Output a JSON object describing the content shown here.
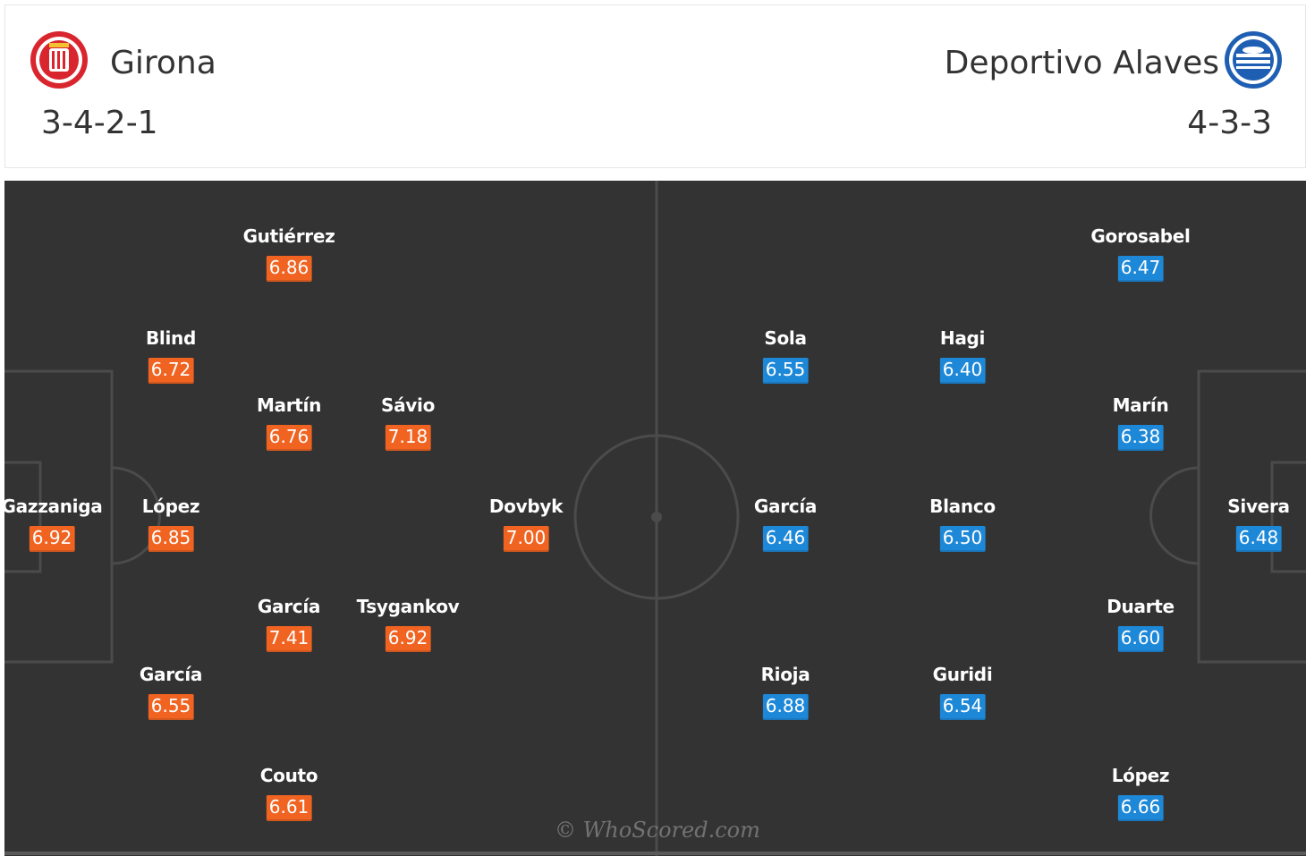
{
  "home": {
    "name": "Girona",
    "formation": "3-4-2-1",
    "color": "#f06321",
    "crest_icon": "girona-crest",
    "players": [
      {
        "name": "Gutiérrez",
        "rating": "6.86"
      },
      {
        "name": "Blind",
        "rating": "6.72"
      },
      {
        "name": "Martín",
        "rating": "6.76"
      },
      {
        "name": "Sávio",
        "rating": "7.18"
      },
      {
        "name": "Gazzaniga",
        "rating": "6.92"
      },
      {
        "name": "López",
        "rating": "6.85"
      },
      {
        "name": "Dovbyk",
        "rating": "7.00"
      },
      {
        "name": "García",
        "rating": "7.41"
      },
      {
        "name": "Tsygankov",
        "rating": "6.92"
      },
      {
        "name": "García",
        "rating": "6.55"
      },
      {
        "name": "Couto",
        "rating": "6.61"
      }
    ]
  },
  "away": {
    "name": "Deportivo Alaves",
    "formation": "4-3-3",
    "color": "#1e88d8",
    "crest_icon": "alaves-crest",
    "players": [
      {
        "name": "Gorosabel",
        "rating": "6.47"
      },
      {
        "name": "Sola",
        "rating": "6.55"
      },
      {
        "name": "Hagi",
        "rating": "6.40"
      },
      {
        "name": "Marín",
        "rating": "6.38"
      },
      {
        "name": "García",
        "rating": "6.46"
      },
      {
        "name": "Blanco",
        "rating": "6.50"
      },
      {
        "name": "Sivera",
        "rating": "6.48"
      },
      {
        "name": "Duarte",
        "rating": "6.60"
      },
      {
        "name": "Rioja",
        "rating": "6.88"
      },
      {
        "name": "Guridi",
        "rating": "6.54"
      },
      {
        "name": "López",
        "rating": "6.66"
      }
    ]
  },
  "watermark": "© WhoScored.com"
}
